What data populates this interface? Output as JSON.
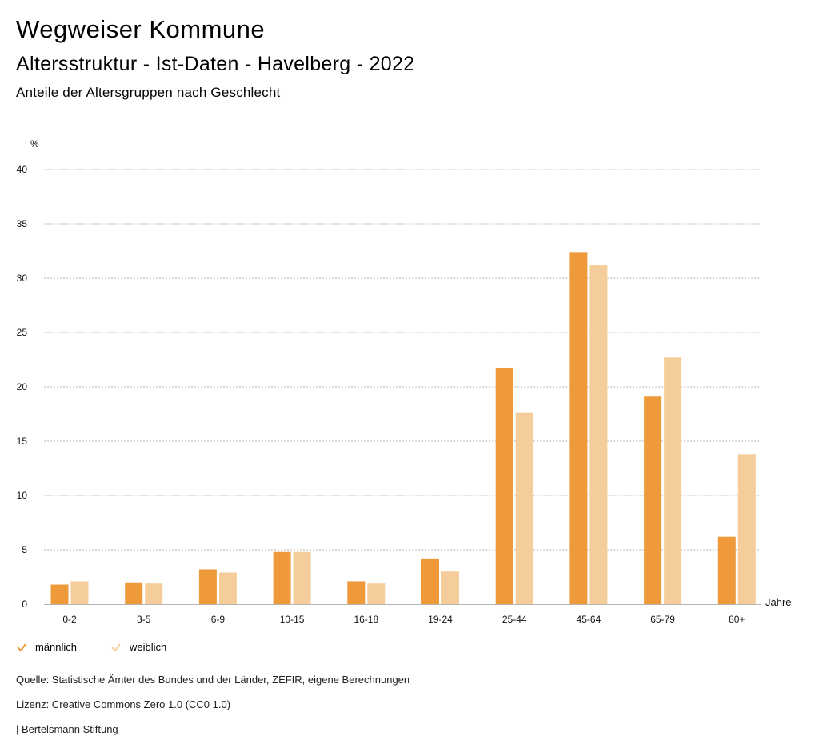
{
  "header": {
    "title": "Wegweiser Kommune",
    "subtitle": "Altersstruktur - Ist-Daten - Havelberg - 2022",
    "chart_title": "Anteile der Altersgruppen nach Geschlecht"
  },
  "chart_data": {
    "type": "bar",
    "categories": [
      "0-2",
      "3-5",
      "6-9",
      "10-15",
      "16-18",
      "19-24",
      "25-44",
      "45-64",
      "65-79",
      "80+"
    ],
    "series": [
      {
        "name": "männlich",
        "color": "#ee9a3a",
        "values": [
          1.8,
          2.0,
          3.2,
          4.8,
          2.1,
          4.2,
          21.7,
          32.4,
          19.1,
          6.2
        ]
      },
      {
        "name": "weiblich",
        "color": "#f5cd9b",
        "values": [
          2.1,
          1.9,
          2.9,
          4.8,
          1.9,
          3.0,
          17.6,
          31.2,
          22.7,
          13.8
        ]
      }
    ],
    "ylabel": "%",
    "xlabel": "Jahre",
    "ylim": [
      0,
      40
    ],
    "yticks": [
      0,
      5,
      10,
      15,
      20,
      25,
      30,
      35,
      40
    ],
    "grid": true,
    "legend_position": "bottom-left"
  },
  "footer": {
    "source": "Quelle: Statistische Ämter des Bundes und der Länder, ZEFIR, eigene Berechnungen",
    "license": "Lizenz: Creative Commons Zero 1.0 (CC0 1.0)",
    "publisher": "| Bertelsmann Stiftung"
  }
}
